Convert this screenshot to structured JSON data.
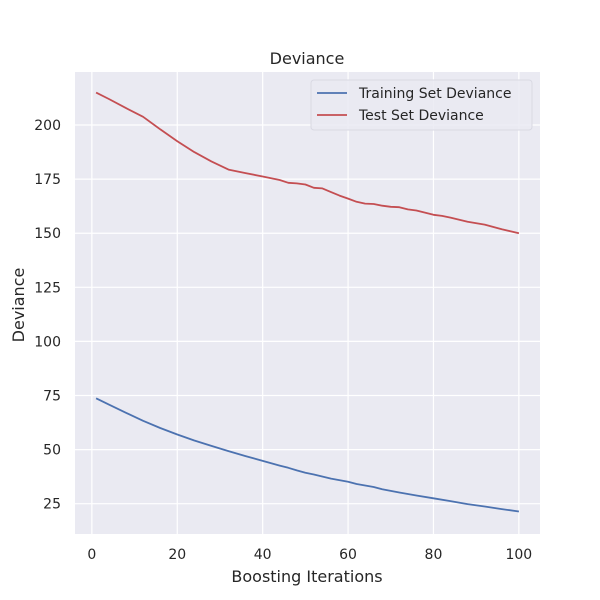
{
  "chart_data": {
    "type": "line",
    "title": "Deviance",
    "xlabel": "Boosting Iterations",
    "ylabel": "Deviance",
    "xlim": [
      -3.95,
      104.95
    ],
    "ylim": [
      11.0,
      224.5
    ],
    "xticks": [
      0,
      20,
      40,
      60,
      80,
      100
    ],
    "yticks": [
      25,
      50,
      75,
      100,
      125,
      150,
      175,
      200
    ],
    "grid": true,
    "legend_position": "top-right",
    "series": [
      {
        "name": "Training Set Deviance",
        "color": "#4c72b0",
        "points": [
          [
            1,
            73.7
          ],
          [
            4,
            70.8
          ],
          [
            8,
            67.0
          ],
          [
            12,
            63.3
          ],
          [
            16,
            60.0
          ],
          [
            20,
            57.0
          ],
          [
            24,
            54.2
          ],
          [
            28,
            51.7
          ],
          [
            32,
            49.3
          ],
          [
            36,
            47.0
          ],
          [
            40,
            44.8
          ],
          [
            44,
            42.6
          ],
          [
            46,
            41.6
          ],
          [
            48,
            40.4
          ],
          [
            50,
            39.3
          ],
          [
            52,
            38.5
          ],
          [
            56,
            36.6
          ],
          [
            60,
            35.1
          ],
          [
            62,
            34.1
          ],
          [
            66,
            32.7
          ],
          [
            68,
            31.7
          ],
          [
            72,
            30.2
          ],
          [
            76,
            28.8
          ],
          [
            80,
            27.5
          ],
          [
            84,
            26.2
          ],
          [
            88,
            24.8
          ],
          [
            92,
            23.7
          ],
          [
            96,
            22.5
          ],
          [
            100,
            21.4
          ]
        ]
      },
      {
        "name": "Test Set Deviance",
        "color": "#c44e52",
        "points": [
          [
            1,
            215.0
          ],
          [
            4,
            212.0
          ],
          [
            8,
            207.8
          ],
          [
            12,
            203.8
          ],
          [
            16,
            198.0
          ],
          [
            20,
            192.5
          ],
          [
            24,
            187.5
          ],
          [
            28,
            183.2
          ],
          [
            32,
            179.4
          ],
          [
            36,
            177.8
          ],
          [
            40,
            176.2
          ],
          [
            44,
            174.6
          ],
          [
            46,
            173.3
          ],
          [
            48,
            173.0
          ],
          [
            50,
            172.5
          ],
          [
            52,
            171.0
          ],
          [
            54,
            170.7
          ],
          [
            56,
            169.0
          ],
          [
            58,
            167.4
          ],
          [
            60,
            166.0
          ],
          [
            62,
            164.5
          ],
          [
            64,
            163.7
          ],
          [
            66,
            163.5
          ],
          [
            68,
            162.7
          ],
          [
            70,
            162.2
          ],
          [
            72,
            162.0
          ],
          [
            74,
            161.0
          ],
          [
            76,
            160.5
          ],
          [
            80,
            158.5
          ],
          [
            82,
            158.0
          ],
          [
            84,
            157.2
          ],
          [
            88,
            155.3
          ],
          [
            92,
            154.0
          ],
          [
            96,
            151.8
          ],
          [
            100,
            150.0
          ]
        ]
      }
    ]
  }
}
